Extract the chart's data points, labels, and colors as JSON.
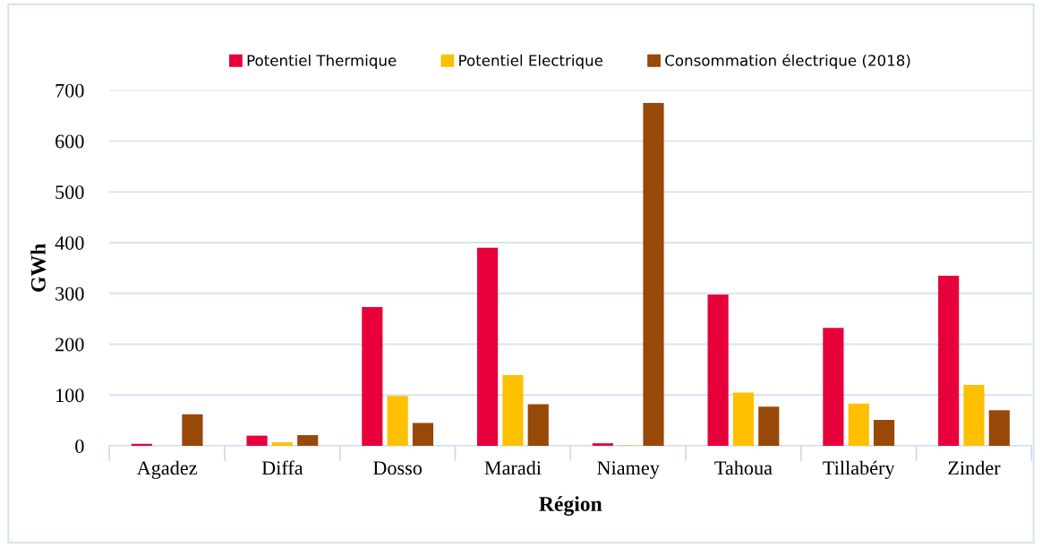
{
  "chart_data": {
    "type": "bar",
    "xlabel": "Région",
    "ylabel": "GWh",
    "categories": [
      "Agadez",
      "Diffa",
      "Dosso",
      "Maradi",
      "Niamey",
      "Tahoua",
      "Tillabéry",
      "Zinder"
    ],
    "series": [
      {
        "name": "Potentiel Thermique",
        "color": "#e8003a",
        "values": [
          4,
          20,
          273,
          390,
          5,
          298,
          232,
          335
        ]
      },
      {
        "name": "Potentiel Electrique",
        "color": "#ffc000",
        "values": [
          0,
          7,
          98,
          139,
          1,
          105,
          83,
          120
        ]
      },
      {
        "name": "Consommation électrique (2018)",
        "color": "#984807",
        "values": [
          62,
          21,
          45,
          82,
          675,
          77,
          51,
          70
        ]
      }
    ],
    "ylim": [
      0,
      700
    ],
    "yticks": [
      0,
      100,
      200,
      300,
      400,
      500,
      600,
      700
    ],
    "grid": "y",
    "legend": "top"
  }
}
